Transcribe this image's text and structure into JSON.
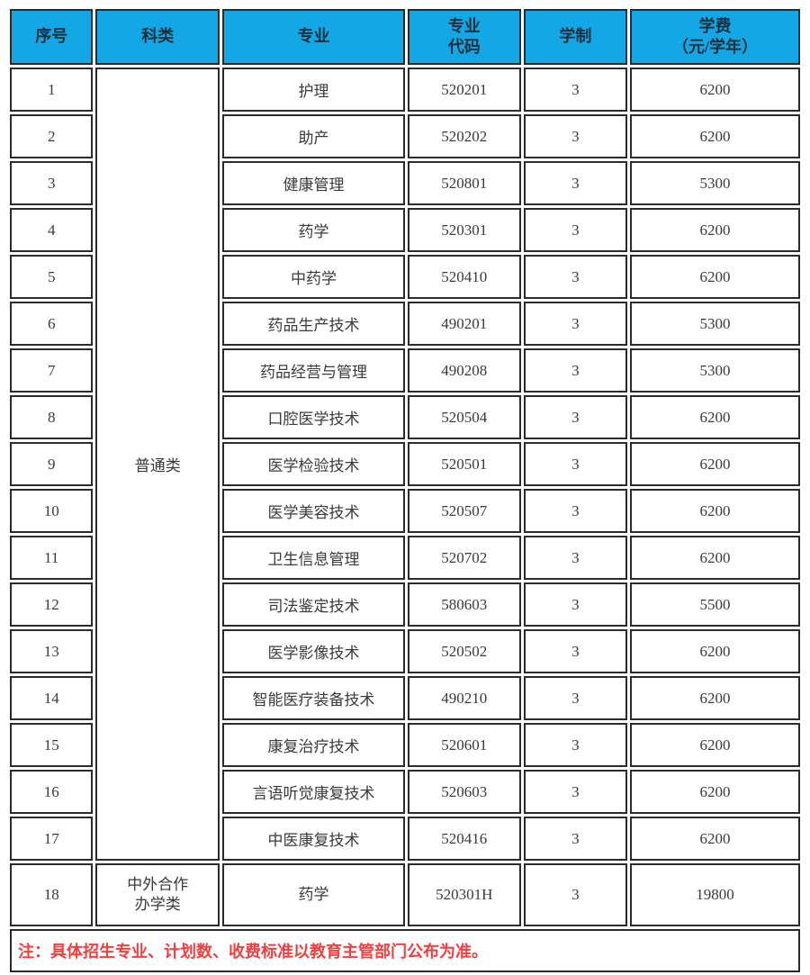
{
  "colors": {
    "header_bg": "#13a7e6",
    "border": "#2b2b2b",
    "body_text": "#3a3a3a",
    "note_red": "#f63d3d",
    "page_bg": "#ffffff"
  },
  "table": {
    "header": {
      "no": "序号",
      "category": "科类",
      "major": "专业",
      "code_line1": "专业",
      "code_line2": "代码",
      "duration": "学制",
      "fee_line1": "学费",
      "fee_line2": "（元/学年）"
    },
    "categories": [
      {
        "start": 0,
        "rowspan": 17,
        "lines": [
          "普通类"
        ]
      },
      {
        "start": 17,
        "rowspan": 1,
        "lines": [
          "中外合作",
          "办学类"
        ]
      }
    ],
    "rows": [
      {
        "no": "1",
        "major": "护理",
        "code": "520201",
        "duration": "3",
        "fee": "6200"
      },
      {
        "no": "2",
        "major": "助产",
        "code": "520202",
        "duration": "3",
        "fee": "6200"
      },
      {
        "no": "3",
        "major": "健康管理",
        "code": "520801",
        "duration": "3",
        "fee": "5300"
      },
      {
        "no": "4",
        "major": "药学",
        "code": "520301",
        "duration": "3",
        "fee": "6200"
      },
      {
        "no": "5",
        "major": "中药学",
        "code": "520410",
        "duration": "3",
        "fee": "6200"
      },
      {
        "no": "6",
        "major": "药品生产技术",
        "code": "490201",
        "duration": "3",
        "fee": "5300"
      },
      {
        "no": "7",
        "major": "药品经营与管理",
        "code": "490208",
        "duration": "3",
        "fee": "5300"
      },
      {
        "no": "8",
        "major": "口腔医学技术",
        "code": "520504",
        "duration": "3",
        "fee": "6200"
      },
      {
        "no": "9",
        "major": "医学检验技术",
        "code": "520501",
        "duration": "3",
        "fee": "6200"
      },
      {
        "no": "10",
        "major": "医学美容技术",
        "code": "520507",
        "duration": "3",
        "fee": "6200"
      },
      {
        "no": "11",
        "major": "卫生信息管理",
        "code": "520702",
        "duration": "3",
        "fee": "6200"
      },
      {
        "no": "12",
        "major": "司法鉴定技术",
        "code": "580603",
        "duration": "3",
        "fee": "5500"
      },
      {
        "no": "13",
        "major": "医学影像技术",
        "code": "520502",
        "duration": "3",
        "fee": "6200"
      },
      {
        "no": "14",
        "major": "智能医疗装备技术",
        "code": "490210",
        "duration": "3",
        "fee": "6200"
      },
      {
        "no": "15",
        "major": "康复治疗技术",
        "code": "520601",
        "duration": "3",
        "fee": "6200"
      },
      {
        "no": "16",
        "major": "言语听觉康复技术",
        "code": "520603",
        "duration": "3",
        "fee": "6200"
      },
      {
        "no": "17",
        "major": "中医康复技术",
        "code": "520416",
        "duration": "3",
        "fee": "6200"
      },
      {
        "no": "18",
        "major": "药学",
        "code": "520301H",
        "duration": "3",
        "fee": "19800"
      }
    ],
    "note": "注：具体招生专业、计划数、收费标准以教育主管部门公布为准。"
  }
}
